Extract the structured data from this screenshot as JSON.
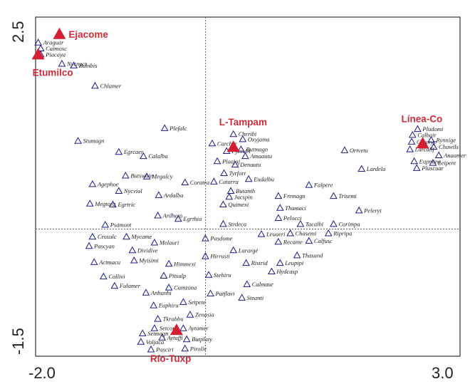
{
  "chart_data": {
    "type": "scatter",
    "xlim": [
      -2.0,
      3.0
    ],
    "ylim": [
      -1.5,
      2.5
    ],
    "x_ticks": [
      "-2.0",
      "3.0"
    ],
    "y_ticks": [
      "2.5",
      "-1.5"
    ],
    "colors": {
      "species": "#1c1c8c",
      "site": "#d41e34",
      "site_label": "#d02b3a"
    },
    "sites": [
      {
        "name": "Ejacome",
        "x": -1.72,
        "y": 2.3
      },
      {
        "name": "Etumilco",
        "x": -1.97,
        "y": 2.06
      },
      {
        "name": "L-Tampam",
        "x": 0.33,
        "y": 0.97
      },
      {
        "name": "Línea-Co",
        "x": 2.56,
        "y": 1.01
      },
      {
        "name": "Río-Tuxp",
        "x": -0.34,
        "y": -1.19
      }
    ],
    "species": [
      {
        "name": "Araguar",
        "x": -1.97,
        "y": 2.2
      },
      {
        "name": "Caimosc",
        "x": -1.94,
        "y": 2.13
      },
      {
        "name": "Piacaya",
        "x": -1.94,
        "y": 2.06
      },
      {
        "name": "Nycnyct",
        "x": -1.69,
        "y": 1.95
      },
      {
        "name": "Bubibis",
        "x": -1.55,
        "y": 1.93
      },
      {
        "name": "Chlamer",
        "x": -1.3,
        "y": 1.69
      },
      {
        "name": "Stumagn",
        "x": -1.5,
        "y": 1.04
      },
      {
        "name": "Plefalc",
        "x": -0.48,
        "y": 1.19
      },
      {
        "name": "Egrcaer",
        "x": -1.02,
        "y": 0.91
      },
      {
        "name": "Calalba",
        "x": -0.73,
        "y": 0.86
      },
      {
        "name": "Chrribi",
        "x": 0.33,
        "y": 1.12
      },
      {
        "name": "Oxyjama",
        "x": 0.44,
        "y": 1.06
      },
      {
        "name": "Carcher",
        "x": 0.08,
        "y": 1.01
      },
      {
        "name": "Pyrrubi",
        "x": 0.25,
        "y": 0.92
      },
      {
        "name": "Butmagn",
        "x": 0.42,
        "y": 0.94
      },
      {
        "name": "Amaautu",
        "x": 0.47,
        "y": 0.86
      },
      {
        "name": "Plaajaj",
        "x": 0.14,
        "y": 0.8
      },
      {
        "name": "Denautu",
        "x": 0.35,
        "y": 0.76
      },
      {
        "name": "Tyrfort",
        "x": 0.22,
        "y": 0.66
      },
      {
        "name": "Eudalbu",
        "x": 0.51,
        "y": 0.59
      },
      {
        "name": "Ortvetu",
        "x": 1.64,
        "y": 0.93
      },
      {
        "name": "Lardela",
        "x": 1.84,
        "y": 0.71
      },
      {
        "name": "Pludomi",
        "x": 2.5,
        "y": 1.18
      },
      {
        "name": "Calbair",
        "x": 2.44,
        "y": 1.11
      },
      {
        "name": "Rynnige",
        "x": 2.66,
        "y": 1.05
      },
      {
        "name": "Corcryp",
        "x": 2.43,
        "y": 1.03
      },
      {
        "name": "Chawils",
        "x": 2.69,
        "y": 0.97
      },
      {
        "name": "Larcalif",
        "x": 2.41,
        "y": 0.94
      },
      {
        "name": "Anaamer",
        "x": 2.75,
        "y": 0.87
      },
      {
        "name": "Eupnana",
        "x": 2.46,
        "y": 0.8
      },
      {
        "name": "Leipere",
        "x": 2.68,
        "y": 0.78
      },
      {
        "name": "Pluscuar",
        "x": 2.49,
        "y": 0.72
      },
      {
        "name": "Butswain",
        "x": -0.94,
        "y": 0.63
      },
      {
        "name": "Megalcy",
        "x": -0.69,
        "y": 0.62
      },
      {
        "name": "Agephoe",
        "x": -1.33,
        "y": 0.53
      },
      {
        "name": "Nycviol",
        "x": -1.02,
        "y": 0.45
      },
      {
        "name": "Coratra",
        "x": -0.24,
        "y": 0.55
      },
      {
        "name": "Catarra",
        "x": 0.1,
        "y": 0.56
      },
      {
        "name": "Butanth",
        "x": 0.3,
        "y": 0.45
      },
      {
        "name": "Ardalba",
        "x": -0.55,
        "y": 0.4
      },
      {
        "name": "Jacspin",
        "x": 0.28,
        "y": 0.38
      },
      {
        "name": "Megtorq",
        "x": -1.36,
        "y": 0.3
      },
      {
        "name": "Egrtric",
        "x": -1.09,
        "y": 0.29
      },
      {
        "name": "Quimexi",
        "x": 0.21,
        "y": 0.29
      },
      {
        "name": "Ardhero",
        "x": -0.56,
        "y": 0.16
      },
      {
        "name": "Egrthiu",
        "x": -0.32,
        "y": 0.12
      },
      {
        "name": "Fremagn",
        "x": 0.86,
        "y": 0.39
      },
      {
        "name": "Falpere",
        "x": 1.22,
        "y": 0.52
      },
      {
        "name": "Trisemi",
        "x": 1.51,
        "y": 0.39
      },
      {
        "name": "Thamaci",
        "x": 0.88,
        "y": 0.25
      },
      {
        "name": "Peleryt",
        "x": 1.81,
        "y": 0.22
      },
      {
        "name": "Pelocci",
        "x": 0.86,
        "y": 0.13
      },
      {
        "name": "Tacalbi",
        "x": 1.12,
        "y": 0.06
      },
      {
        "name": "Corimpa",
        "x": 1.51,
        "y": 0.06
      },
      {
        "name": "Psamont",
        "x": -1.18,
        "y": 0.05
      },
      {
        "name": "Strdeca",
        "x": 0.21,
        "y": 0.06
      },
      {
        "name": "Leuaeri",
        "x": 0.66,
        "y": -0.06
      },
      {
        "name": "Chasemi",
        "x": 1.0,
        "y": -0.05
      },
      {
        "name": "Ripripa",
        "x": 1.45,
        "y": -0.05
      },
      {
        "name": "Crosulc",
        "x": -1.33,
        "y": -0.09
      },
      {
        "name": "Mycame",
        "x": -0.93,
        "y": -0.09
      },
      {
        "name": "Pasdome",
        "x": 0.0,
        "y": -0.11
      },
      {
        "name": "Recame",
        "x": 0.86,
        "y": -0.15
      },
      {
        "name": "Calfusc",
        "x": 1.22,
        "y": -0.14
      },
      {
        "name": "Pascyan",
        "x": -1.37,
        "y": -0.2
      },
      {
        "name": "Melauri",
        "x": -0.6,
        "y": -0.16
      },
      {
        "name": "Larargé",
        "x": 0.33,
        "y": -0.25
      },
      {
        "name": "Dividive",
        "x": -0.86,
        "y": -0.25
      },
      {
        "name": "Hirrusti",
        "x": 0.0,
        "y": -0.32
      },
      {
        "name": "Thasand",
        "x": 1.08,
        "y": -0.31
      },
      {
        "name": "Actmacu",
        "x": -1.31,
        "y": -0.39
      },
      {
        "name": "Myisimi",
        "x": -0.84,
        "y": -0.37
      },
      {
        "name": "Himmexi",
        "x": -0.43,
        "y": -0.41
      },
      {
        "name": "Ristrid",
        "x": 0.48,
        "y": -0.4
      },
      {
        "name": "Leupipi",
        "x": 0.88,
        "y": -0.4
      },
      {
        "name": "Stehiru",
        "x": 0.04,
        "y": -0.54
      },
      {
        "name": "Collivi",
        "x": -1.2,
        "y": -0.56
      },
      {
        "name": "Pitsulp",
        "x": -0.49,
        "y": -0.55
      },
      {
        "name": "Hydcasp",
        "x": 0.78,
        "y": -0.5
      },
      {
        "name": "Calmaur",
        "x": 0.49,
        "y": -0.65
      },
      {
        "name": "Fulamer",
        "x": -1.07,
        "y": -0.67
      },
      {
        "name": "Camzona",
        "x": -0.43,
        "y": -0.69
      },
      {
        "name": "Anhanhi",
        "x": -0.7,
        "y": -0.75
      },
      {
        "name": "Patflavi",
        "x": 0.06,
        "y": -0.76
      },
      {
        "name": "Steanti",
        "x": 0.43,
        "y": -0.81
      },
      {
        "name": "Setpete",
        "x": -0.26,
        "y": -0.86
      },
      {
        "name": "Euphiru",
        "x": -0.61,
        "y": -0.9
      },
      {
        "name": "Zenasia",
        "x": -0.18,
        "y": -1.01
      },
      {
        "name": "Tkrabbu",
        "x": -0.56,
        "y": -1.06
      },
      {
        "name": "Setcoro",
        "x": -0.6,
        "y": -1.17
      },
      {
        "name": "Aytamer",
        "x": -0.26,
        "y": -1.17
      },
      {
        "name": "Setmagn",
        "x": -0.74,
        "y": -1.23
      },
      {
        "name": "Aytaffi",
        "x": -0.51,
        "y": -1.28
      },
      {
        "name": "Butplaty",
        "x": -0.22,
        "y": -1.3
      },
      {
        "name": "Voljaca",
        "x": -0.76,
        "y": -1.33
      },
      {
        "name": "Pasciri",
        "x": -0.64,
        "y": -1.42
      },
      {
        "name": "Piroliv",
        "x": -0.24,
        "y": -1.41
      }
    ]
  }
}
